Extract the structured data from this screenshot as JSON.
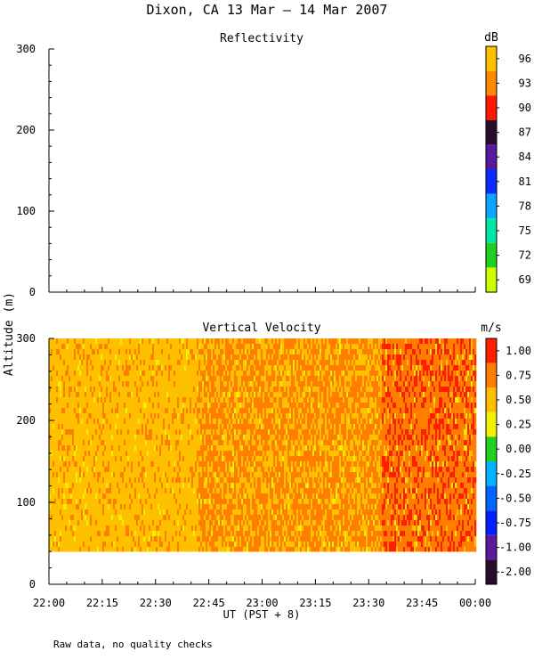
{
  "figure": {
    "title": "Dixon, CA 13 Mar — 14 Mar 2007",
    "ylabel": "Altitude (m)",
    "xlabel": "UT  (PST + 8)",
    "footnote": "Raw data, no quality checks",
    "x_ticks": [
      "22:00",
      "22:15",
      "22:30",
      "22:45",
      "23:00",
      "23:15",
      "23:30",
      "23:45",
      "00:00"
    ]
  },
  "chart_data": [
    {
      "type": "heatmap",
      "title": "Reflectivity",
      "ylabel": "Altitude (m)",
      "xlabel": "UT  (PST + 8)",
      "x_range": [
        "22:00",
        "00:00"
      ],
      "ylim": [
        0,
        300
      ],
      "y_ticks": [
        0,
        100,
        200,
        300
      ],
      "values": [],
      "colorbar": {
        "unit": "dB",
        "labels": [
          "96",
          "93",
          "90",
          "87",
          "84",
          "81",
          "78",
          "75",
          "72",
          "69"
        ],
        "colors": [
          "#ffc000",
          "#ff8c00",
          "#ff1800",
          "#2a0c2a",
          "#5a1a9e",
          "#0a2aff",
          "#0aa6ff",
          "#00e6a6",
          "#22d022",
          "#ccff00"
        ]
      }
    },
    {
      "type": "heatmap",
      "title": "Vertical Velocity",
      "ylabel": "Altitude (m)",
      "xlabel": "UT  (PST + 8)",
      "x_range": [
        "22:00",
        "00:00"
      ],
      "ylim": [
        0,
        300
      ],
      "y_ticks": [
        0,
        100,
        200,
        300
      ],
      "data_altitude_range": [
        40,
        300
      ],
      "dominant_values": [
        0.5,
        0.75,
        1.0
      ],
      "colorbar": {
        "unit": "m/s",
        "labels": [
          "1.00",
          "0.75",
          "0.50",
          "0.25",
          "0.00",
          "-0.25",
          "-0.50",
          "-0.75",
          "-1.00",
          "-2.00"
        ],
        "colors": [
          "#ff1e00",
          "#ff7e00",
          "#ffbe00",
          "#f0f000",
          "#22d022",
          "#00b4ff",
          "#0066ff",
          "#0020ff",
          "#5a1a9e",
          "#2a0c2a"
        ]
      }
    }
  ]
}
